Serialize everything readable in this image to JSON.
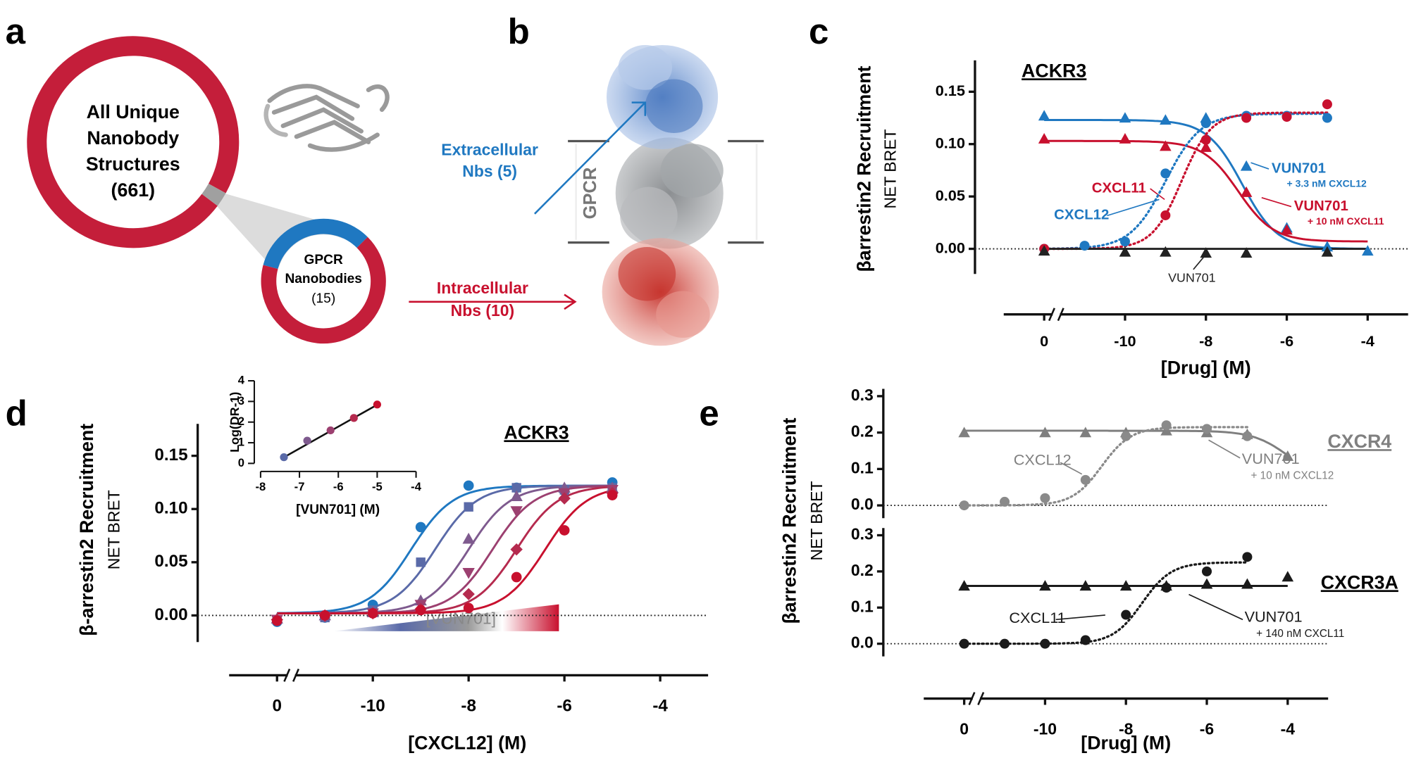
{
  "panel_labels": [
    "a",
    "b",
    "c",
    "d",
    "e"
  ],
  "panel_a": {
    "all_lines": [
      "All Unique",
      "Nanobody",
      "Structures"
    ],
    "all_count": {
      "value": 661,
      "label": "(661)"
    },
    "gpcr_lines": [
      "GPCR",
      "Nanobodies"
    ],
    "gpcr_count": {
      "value": 15,
      "label": "(15)"
    }
  },
  "panel_b": {
    "gpcr_label": "GPCR",
    "extracellular": {
      "lines": [
        "Extracellular",
        "Nbs (5)"
      ],
      "count": 5
    },
    "intracellular": {
      "lines": [
        "Intracellular",
        "Nbs (10)"
      ],
      "count": 10
    }
  },
  "chart_data": [
    {
      "type": "line",
      "title": "ACKR3",
      "y_label": "βarrestin2 Recruitment",
      "y_sublabel": "NET BRET",
      "x_label": "[Drug] (M)",
      "xlim": [
        -13,
        -3
      ],
      "xticks": [
        {
          "value": -12,
          "label": "0"
        },
        -10,
        -8,
        -6,
        -4
      ],
      "ylim": [
        -0.024,
        0.18
      ],
      "yticks": [
        {
          "value": 0,
          "label": "0.00"
        },
        {
          "value": 0.05,
          "label": "0.05"
        },
        {
          "value": 0.1,
          "label": "0.10"
        },
        {
          "value": 0.15,
          "label": "0.15"
        }
      ],
      "axis_break": true,
      "zero_line": true,
      "series": [
        {
          "name": "VUN701",
          "note": "+ 3.3 nM CXCL12",
          "color": "#1f78c1",
          "marker": "triangle",
          "line": "solid",
          "x": [
            -12,
            -10,
            -9,
            -8,
            -7,
            -6,
            -5,
            -4
          ],
          "values": [
            0.127,
            0.125,
            0.123,
            0.125,
            0.079,
            0.02,
            0.002,
            -0.002
          ],
          "fit": {
            "bottom": 0,
            "top": 0.123,
            "log_ec50": -7.1,
            "hill": -1,
            "from": -12,
            "to": -4
          }
        },
        {
          "name": "VUN701",
          "note": "+ 10 nM CXCL11",
          "color": "#c8102e",
          "marker": "triangle",
          "line": "solid",
          "x": [
            -12,
            -10,
            -9,
            -8,
            -7,
            -6
          ],
          "values": [
            0.105,
            0.105,
            0.098,
            0.097,
            0.054,
            0.018
          ],
          "fit": {
            "bottom": 0.007,
            "top": 0.103,
            "log_ec50": -7.2,
            "hill": -1,
            "from": -12,
            "to": -4
          }
        },
        {
          "name": "CXCL12",
          "color": "#1f78c1",
          "marker": "circle",
          "line": "dotted",
          "x": [
            -12,
            -11,
            -10,
            -9,
            -8,
            -7,
            -6,
            -5
          ],
          "values": [
            0,
            0.003,
            0.007,
            0.072,
            0.12,
            0.127,
            0.127,
            0.125
          ],
          "fit": {
            "bottom": 0,
            "top": 0.129,
            "log_ec50": -9.0,
            "hill": 1,
            "from": -12,
            "to": -5
          }
        },
        {
          "name": "CXCL11",
          "color": "#c8102e",
          "marker": "circle",
          "line": "dotted",
          "x": [
            -12,
            -9,
            -8,
            -7,
            -6,
            -5
          ],
          "values": [
            0,
            0.032,
            0.104,
            0.125,
            0.126,
            0.138
          ],
          "fit": {
            "bottom": 0,
            "top": 0.13,
            "log_ec50": -8.6,
            "hill": 1.2,
            "from": -12,
            "to": -5
          }
        },
        {
          "name": "VUN701",
          "color": "#222222",
          "marker": "triangle",
          "line": "solid",
          "x": [
            -12,
            -10,
            -9,
            -8,
            -7,
            -5
          ],
          "values": [
            -0.002,
            -0.003,
            -0.003,
            -0.004,
            -0.004,
            -0.003
          ],
          "fit": {
            "bottom": 0,
            "top": 0,
            "log_ec50": -8,
            "hill": 1,
            "from": -12,
            "to": -4
          }
        }
      ]
    },
    {
      "type": "line",
      "title": "ACKR3",
      "y_label": "β-arrestin2 Recruitment",
      "y_sublabel": "NET BRET",
      "x_label": "[CXCL12] (M)",
      "gradient_label": "[VUN701]",
      "xlim": [
        -13,
        -3
      ],
      "xticks": [
        {
          "value": -12,
          "label": "0"
        },
        -10,
        -8,
        -6,
        -4
      ],
      "ylim": [
        -0.025,
        0.18
      ],
      "yticks": [
        {
          "value": 0,
          "label": "0.00"
        },
        {
          "value": 0.05,
          "label": "0.05"
        },
        {
          "value": 0.1,
          "label": "0.10"
        },
        {
          "value": 0.15,
          "label": "0.15"
        }
      ],
      "axis_break": true,
      "zero_line": true,
      "series": [
        {
          "color": "#1f78c1",
          "marker": "circle",
          "line": "solid",
          "x": [
            -12,
            -11,
            -10,
            -9,
            -8,
            -7,
            -6,
            -5
          ],
          "values": [
            -0.006,
            -0.002,
            0.01,
            0.083,
            0.122,
            0.12,
            0.117,
            0.125
          ],
          "fit": {
            "bottom": 0.002,
            "top": 0.122,
            "log_ec50": -9.2,
            "hill": 1,
            "from": -12,
            "to": -5
          }
        },
        {
          "color": "#5a6aa8",
          "marker": "square",
          "line": "solid",
          "x": [
            -12,
            -11,
            -10,
            -9,
            -8,
            -7,
            -6,
            -5
          ],
          "values": [
            -0.004,
            -0.002,
            0.005,
            0.05,
            0.102,
            0.12,
            0.118,
            0.12
          ],
          "fit": {
            "bottom": 0.002,
            "top": 0.122,
            "log_ec50": -8.7,
            "hill": 1,
            "from": -12,
            "to": -5
          }
        },
        {
          "color": "#7e5a8e",
          "marker": "triangle",
          "line": "solid",
          "x": [
            -12,
            -11,
            -10,
            -9,
            -8,
            -7,
            -6,
            -5
          ],
          "values": [
            -0.003,
            0,
            0.003,
            0.014,
            0.072,
            0.112,
            0.12,
            0.12
          ],
          "fit": {
            "bottom": 0.002,
            "top": 0.122,
            "log_ec50": -8.0,
            "hill": 1,
            "from": -12,
            "to": -5
          }
        },
        {
          "color": "#9c4070",
          "marker": "triangle-down",
          "line": "solid",
          "x": [
            -12,
            -11,
            -10,
            -9,
            -8,
            -7,
            -6,
            -5
          ],
          "values": [
            -0.004,
            -0.001,
            0.002,
            0.01,
            0.04,
            0.098,
            0.115,
            0.118
          ],
          "fit": {
            "bottom": 0.002,
            "top": 0.122,
            "log_ec50": -7.5,
            "hill": 1,
            "from": -12,
            "to": -5
          }
        },
        {
          "color": "#b52a4e",
          "marker": "diamond",
          "line": "solid",
          "x": [
            -12,
            -11,
            -10,
            -9,
            -8,
            -7,
            -6,
            -5
          ],
          "values": [
            -0.004,
            0,
            0.002,
            0.006,
            0.02,
            0.062,
            0.11,
            0.115
          ],
          "fit": {
            "bottom": 0.002,
            "top": 0.122,
            "log_ec50": -7.0,
            "hill": 1,
            "from": -12,
            "to": -5
          }
        },
        {
          "color": "#c8102e",
          "marker": "circle",
          "line": "solid",
          "x": [
            -12,
            -11,
            -10,
            -9,
            -8,
            -7,
            -6,
            -5
          ],
          "values": [
            -0.005,
            0,
            0.002,
            0.005,
            0.007,
            0.036,
            0.08,
            0.113
          ],
          "fit": {
            "bottom": 0.002,
            "top": 0.122,
            "log_ec50": -6.4,
            "hill": 1,
            "from": -12,
            "to": -5
          }
        }
      ]
    },
    {
      "type": "scatter",
      "y_label": "Log(DR-1)",
      "x_label": "[VUN701] (M)",
      "xlim": [
        -8,
        -4
      ],
      "xticks": [
        -8,
        -7,
        -6,
        -5,
        -4
      ],
      "ylim": [
        0,
        4
      ],
      "yticks": [
        0,
        1,
        2,
        3,
        4
      ],
      "x": [
        -7.4,
        -6.8,
        -6.2,
        -5.6,
        -5
      ],
      "values": [
        0.3,
        1.1,
        1.6,
        2.2,
        2.85
      ],
      "colors": [
        "#5a6aa8",
        "#7e5a8e",
        "#9c4070",
        "#b52a4e",
        "#c8102e"
      ],
      "fit": {
        "slope": 1.06,
        "intercept": 8.14,
        "from": -7.4,
        "to": -5
      }
    },
    {
      "type": "line",
      "title": "CXCR4",
      "title_color": "#808080",
      "y_label": "βarrestin2 Recruitment",
      "y_sublabel": "NET BRET",
      "xlim": [
        -13,
        -3
      ],
      "ylim": [
        -0.035,
        0.32
      ],
      "yticks": [
        {
          "value": 0,
          "label": "0.0"
        },
        {
          "value": 0.1,
          "label": "0.1"
        },
        {
          "value": 0.2,
          "label": "0.2"
        },
        {
          "value": 0.3,
          "label": "0.3"
        }
      ],
      "zero_line": true,
      "series": [
        {
          "name": "VUN701",
          "note": "+ 10 nM CXCL12",
          "color": "#7f7f7f",
          "marker": "triangle",
          "line": "solid",
          "x": [
            -12,
            -10,
            -9,
            -8,
            -7,
            -6,
            -5,
            -4
          ],
          "values": [
            0.2,
            0.2,
            0.2,
            0.2,
            0.205,
            0.2,
            0.195,
            0.135
          ],
          "fit": {
            "bottom": 0.07,
            "top": 0.205,
            "log_ec50": -4.0,
            "hill": -1,
            "from": -12,
            "to": -4
          }
        },
        {
          "name": "CXCL12",
          "color": "#8a8a8a",
          "marker": "circle",
          "line": "dotted",
          "x": [
            -12,
            -11,
            -10,
            -9,
            -8,
            -7,
            -6,
            -5
          ],
          "values": [
            0,
            0.01,
            0.02,
            0.07,
            0.19,
            0.22,
            0.21,
            0.19
          ],
          "fit": {
            "bottom": 0,
            "top": 0.215,
            "log_ec50": -8.6,
            "hill": 1.2,
            "from": -12,
            "to": -5
          }
        }
      ]
    },
    {
      "type": "line",
      "title": "CXCR3A",
      "x_label": "[Drug] (M)",
      "xlim": [
        -13,
        -3
      ],
      "xticks": [
        {
          "value": -12,
          "label": "0"
        },
        -10,
        -8,
        -6,
        -4
      ],
      "ylim": [
        -0.035,
        0.32
      ],
      "yticks": [
        {
          "value": 0,
          "label": "0.0"
        },
        {
          "value": 0.1,
          "label": "0.1"
        },
        {
          "value": 0.2,
          "label": "0.2"
        },
        {
          "value": 0.3,
          "label": "0.3"
        }
      ],
      "axis_break": true,
      "zero_line": true,
      "series": [
        {
          "name": "VUN701",
          "note": "+ 140 nM CXCL11",
          "color": "#1a1a1a",
          "marker": "triangle",
          "line": "solid",
          "x": [
            -12,
            -10,
            -9,
            -8,
            -7,
            -6,
            -5,
            -4
          ],
          "values": [
            0.16,
            0.16,
            0.16,
            0.16,
            0.16,
            0.165,
            0.165,
            0.185
          ],
          "fit": {
            "bottom": 0.16,
            "top": 0.16,
            "log_ec50": -8,
            "hill": 1,
            "from": -12,
            "to": -4
          }
        },
        {
          "name": "CXCL11",
          "color": "#1a1a1a",
          "marker": "circle",
          "line": "dotted",
          "x": [
            -12,
            -11,
            -10,
            -9,
            -8,
            -7,
            -6,
            -5
          ],
          "values": [
            0,
            0,
            0,
            0.01,
            0.08,
            0.155,
            0.2,
            0.24
          ],
          "fit": {
            "bottom": 0,
            "top": 0.225,
            "log_ec50": -7.6,
            "hill": 1.2,
            "from": -12,
            "to": -5
          }
        }
      ]
    }
  ]
}
